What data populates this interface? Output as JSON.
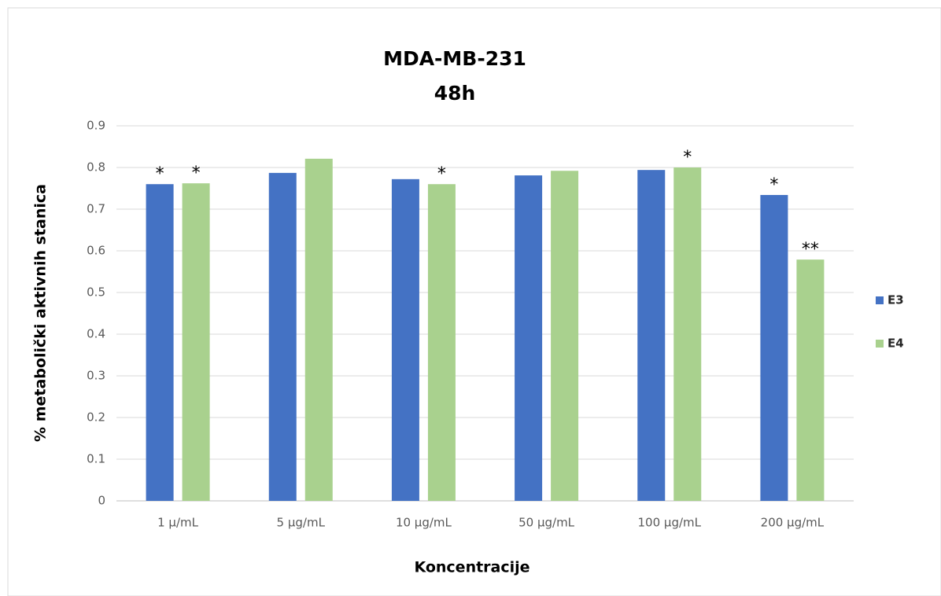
{
  "chart_data": {
    "type": "bar",
    "title": "MDA-MB-231",
    "subtitle": "48h",
    "x_label": "Koncentracije",
    "y_label": "% metabolički aktivnih stanica",
    "categories": [
      "1 µ/mL",
      "5 µg/mL",
      "10 µg/mL",
      "50 µg/mL",
      "100 µg/mL",
      "200 µg/mL"
    ],
    "series": [
      {
        "name": "E3",
        "color": "#4472c4",
        "values": [
          0.76,
          0.787,
          0.772,
          0.781,
          0.794,
          0.734
        ],
        "markers": [
          "*",
          null,
          null,
          null,
          null,
          "*"
        ]
      },
      {
        "name": "E4",
        "color": "#a9d18e",
        "values": [
          0.762,
          0.821,
          0.76,
          0.792,
          0.8,
          0.579
        ],
        "markers": [
          "*",
          null,
          "*",
          null,
          "*",
          "**"
        ]
      }
    ],
    "ylim": [
      0,
      0.9
    ],
    "yticks": [
      0,
      0.1,
      0.2,
      0.3,
      0.4,
      0.5,
      0.6,
      0.7,
      0.8,
      0.9
    ],
    "grid": true,
    "legend": "right"
  }
}
